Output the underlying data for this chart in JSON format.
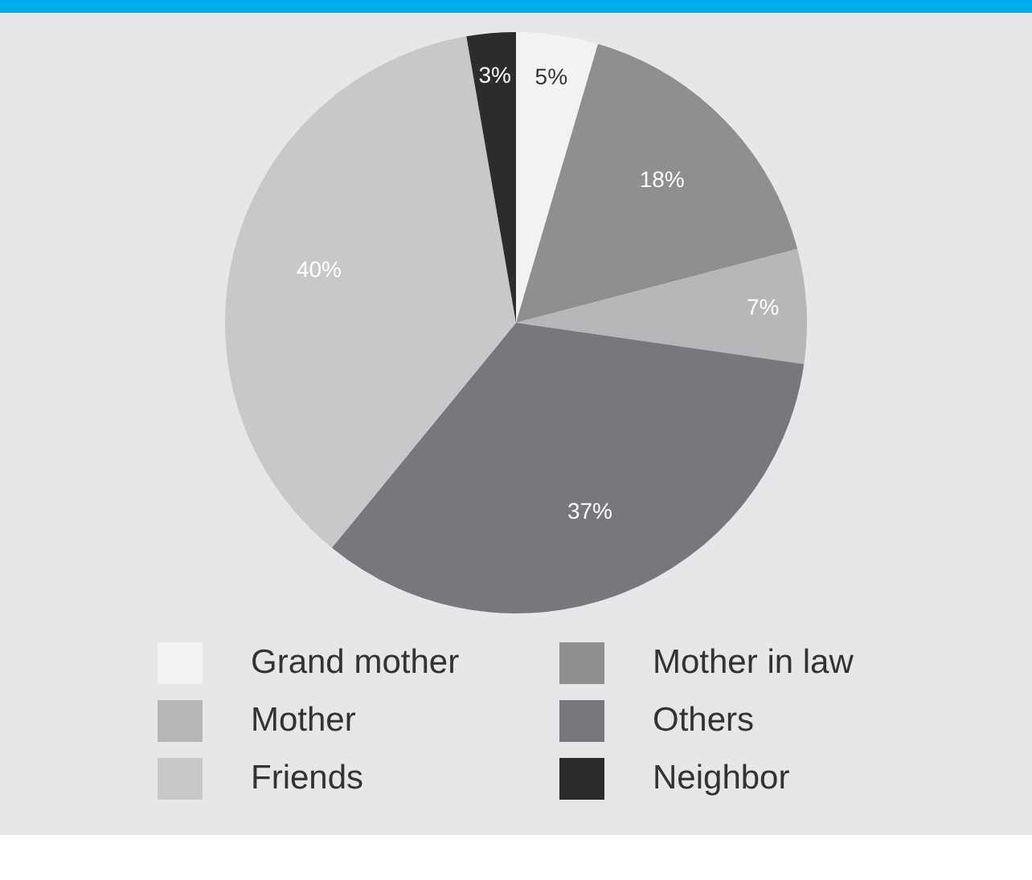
{
  "chart_data": {
    "type": "pie",
    "categories": [
      "Grand mother",
      "Mother in law",
      "Mother",
      "Others",
      "Friends",
      "Neighbor"
    ],
    "values": [
      5,
      18,
      7,
      37,
      40,
      3
    ],
    "colors": [
      "#f1f2f3",
      "#8e8f91",
      "#b6b7b9",
      "#77787b",
      "#c7c8ca",
      "#2e2b2c"
    ],
    "value_labels": [
      "5%",
      "18%",
      "7%",
      "37%",
      "40%",
      "3%"
    ],
    "legend": "bottom"
  }
}
